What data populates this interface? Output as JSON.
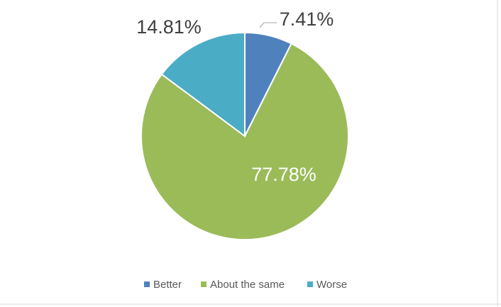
{
  "chart_data": {
    "type": "pie",
    "categories": [
      "Better",
      "About the same",
      "Worse"
    ],
    "values": [
      7.41,
      77.78,
      14.81
    ],
    "value_labels": [
      "7.41%",
      "77.78%",
      "14.81%"
    ],
    "colors": [
      "#4f81bd",
      "#9bbb59",
      "#4bacc6"
    ]
  }
}
